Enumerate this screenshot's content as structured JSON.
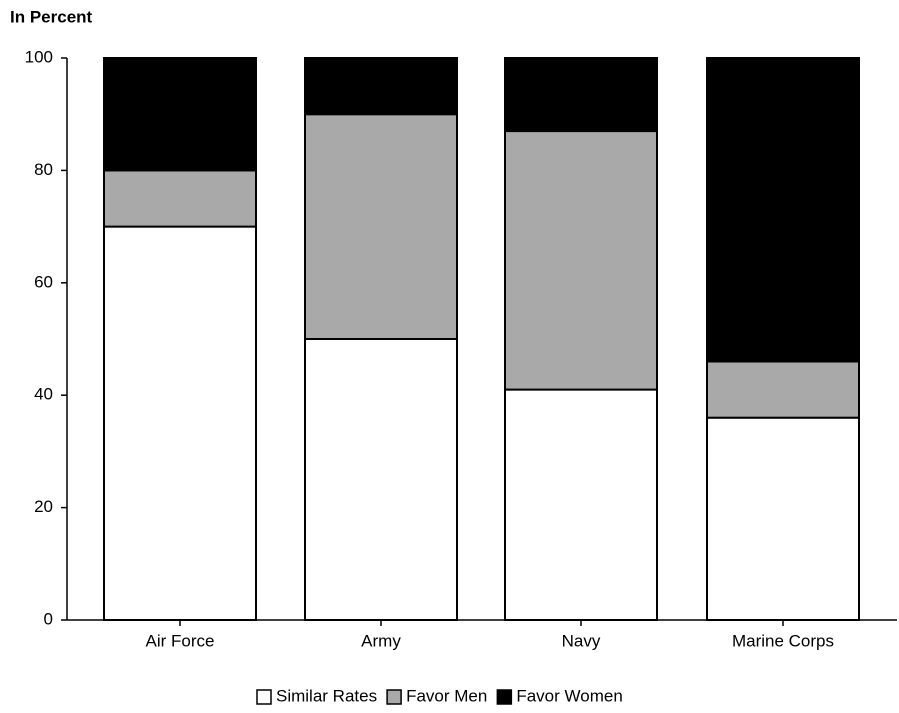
{
  "chart_data": {
    "type": "stacked_bar",
    "axis_label": "In Percent",
    "categories": [
      "Air Force",
      "Army",
      "Navy",
      "Marine Corps"
    ],
    "series": [
      {
        "name": "Similar Rates",
        "color": "#ffffff",
        "values": [
          70,
          50,
          41,
          36
        ]
      },
      {
        "name": "Favor Men",
        "color": "#a9a9a9",
        "values": [
          10,
          40,
          46,
          10
        ]
      },
      {
        "name": "Favor Women",
        "color": "#000000",
        "values": [
          20,
          10,
          13,
          54
        ]
      }
    ],
    "ylim": [
      0,
      100
    ],
    "yticks": [
      0,
      20,
      40,
      60,
      80,
      100
    ],
    "legend": "bottom"
  }
}
